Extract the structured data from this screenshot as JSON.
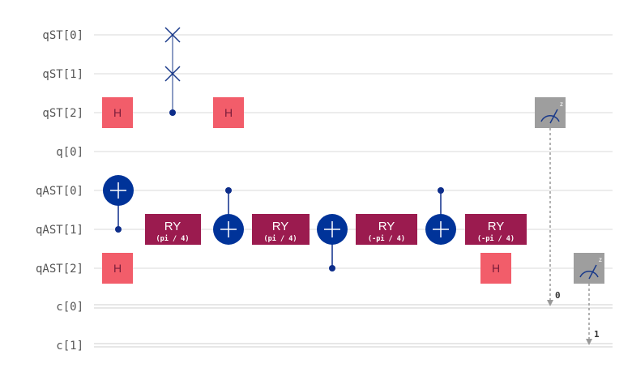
{
  "qubit_labels": [
    "qST[0]",
    "qST[1]",
    "qST[2]",
    "q[0]",
    "qAST[0]",
    "qAST[1]",
    "qAST[2]"
  ],
  "classical_labels": [
    "c[0]",
    "c[1]"
  ],
  "gates": {
    "h_label": "H",
    "ry_label": "RY",
    "ry_params": [
      "(pi / 4)",
      "(pi / 4)",
      "(-pi / 4)",
      "(-pi / 4)"
    ],
    "measure_basis": "z",
    "classical_bits": [
      "0",
      "1"
    ]
  },
  "colors": {
    "h_gate": "#f25d6a",
    "ry_gate": "#9b1b4f",
    "target": "#003399",
    "control": "#0d2d8a",
    "swap": "#1a3a8a",
    "measure_box": "#9e9e9e",
    "measure_arrow": "#999999"
  }
}
